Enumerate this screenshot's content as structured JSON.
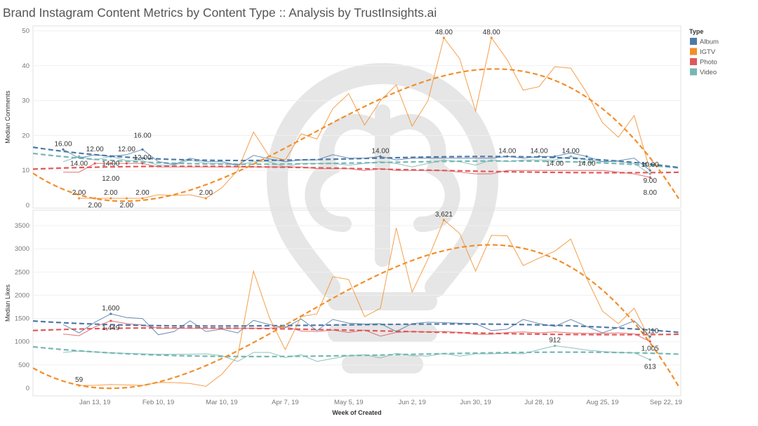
{
  "title": "Brand Instagram Content Metrics by Content Type :: Analysis by TrustInsights.ai",
  "legend": {
    "title": "Type",
    "items": [
      {
        "name": "Album",
        "color": "#4e79a7"
      },
      {
        "name": "IGTV",
        "color": "#f28e2b"
      },
      {
        "name": "Photo",
        "color": "#e15759"
      },
      {
        "name": "Video",
        "color": "#76b7b2"
      }
    ]
  },
  "watermark": "trustinsights-lightbulb-brain-logo",
  "chart_data": [
    {
      "type": "line",
      "ylabel": "Median Comments",
      "xlabel": "Week of Created",
      "ylim": [
        0,
        50
      ],
      "yticks": [
        "0",
        "10",
        "20",
        "30",
        "40",
        "50"
      ],
      "trendline": "polynomial",
      "label_decimals": 2,
      "x": [
        "2018-12-30",
        "2019-01-06",
        "2019-01-13",
        "2019-01-20",
        "2019-01-27",
        "2019-02-03",
        "2019-02-10",
        "2019-02-17",
        "2019-02-24",
        "2019-03-03",
        "2019-03-10",
        "2019-03-17",
        "2019-03-24",
        "2019-03-31",
        "2019-04-07",
        "2019-04-14",
        "2019-04-21",
        "2019-04-28",
        "2019-05-05",
        "2019-05-12",
        "2019-05-19",
        "2019-05-26",
        "2019-06-02",
        "2019-06-09",
        "2019-06-16",
        "2019-06-23",
        "2019-06-30",
        "2019-07-07",
        "2019-07-14",
        "2019-07-21",
        "2019-07-28",
        "2019-08-04",
        "2019-08-11",
        "2019-08-18",
        "2019-08-25",
        "2019-09-01",
        "2019-09-08",
        "2019-09-15",
        "2019-09-22"
      ],
      "series": [
        {
          "name": "Album",
          "values": [
            16,
            13.5,
            14.5,
            14,
            14.5,
            16,
            12.5,
            11.7,
            13.5,
            12.5,
            12.5,
            11.5,
            14.3,
            13.3,
            12.5,
            13,
            13,
            14.5,
            13.5,
            13.5,
            14,
            13,
            13.5,
            13.5,
            13.5,
            13.5,
            13.5,
            13.5,
            14,
            13.5,
            14,
            14,
            15,
            14,
            12.5,
            12.8,
            13.5,
            10,
            null
          ],
          "labeled": [
            0,
            3,
            5,
            20,
            28,
            30,
            31,
            33,
            37
          ]
        },
        {
          "name": "IGTV",
          "values": [
            null,
            2,
            2,
            2,
            2,
            2,
            3,
            2.8,
            3,
            2,
            5,
            10,
            21,
            14,
            13,
            20.5,
            19,
            27.7,
            32,
            23,
            30,
            34.5,
            22.7,
            30,
            48,
            42,
            27,
            48,
            41.7,
            33,
            34,
            39.7,
            39.3,
            32.3,
            23.7,
            19.5,
            25.7,
            10,
            null
          ],
          "labeled": [
            1,
            2,
            3,
            4,
            5,
            9,
            24,
            27
          ]
        },
        {
          "name": "Photo",
          "values": [
            9.5,
            9.5,
            12,
            12,
            12,
            12,
            11,
            11,
            11,
            11,
            11,
            11,
            11,
            11,
            11,
            11,
            10.5,
            10.5,
            10.5,
            10,
            10.5,
            10,
            10,
            10,
            10,
            9.5,
            9,
            9,
            10,
            10,
            10,
            10,
            10,
            10,
            10,
            9.5,
            9,
            8,
            null
          ],
          "labeled": [
            2,
            3,
            4,
            5,
            37
          ]
        },
        {
          "name": "Video",
          "values": [
            12.5,
            14,
            13,
            14,
            12.8,
            12.8,
            11.5,
            11.5,
            13,
            12,
            12,
            11.5,
            12.5,
            12.5,
            11,
            12,
            12,
            12,
            11.5,
            12,
            12.5,
            12,
            11,
            12,
            13,
            12.5,
            11.5,
            13,
            12.5,
            13,
            13,
            13,
            14,
            13,
            12.5,
            12.5,
            12,
            9,
            null
          ],
          "labeled": [
            1,
            32,
            37
          ]
        }
      ]
    },
    {
      "type": "line",
      "ylabel": "Median Likes",
      "xlabel": "Week of Created",
      "ylim": [
        0,
        3700
      ],
      "yticks": [
        "0",
        "500",
        "1000",
        "1500",
        "2000",
        "2500",
        "3000",
        "3500"
      ],
      "xticks": [
        "Jan 13, 19",
        "Feb 10, 19",
        "Mar 10, 19",
        "Apr 7, 19",
        "May 5, 19",
        "Jun 2, 19",
        "Jun 30, 19",
        "Jul 28, 19",
        "Aug 25, 19",
        "Sep 22, 19"
      ],
      "trendline": "polynomial",
      "label_decimals": 0,
      "series": [
        {
          "name": "Album",
          "values": [
            1370,
            1190,
            1420,
            1600,
            1520,
            1500,
            1150,
            1220,
            1450,
            1220,
            1270,
            1190,
            1460,
            1370,
            1300,
            1490,
            1240,
            1480,
            1400,
            1380,
            1390,
            1220,
            1390,
            1420,
            1410,
            1400,
            1390,
            1240,
            1270,
            1480,
            1390,
            1330,
            1480,
            1330,
            1190,
            1310,
            1450,
            1110,
            null
          ],
          "labeled": [
            3,
            37
          ]
        },
        {
          "name": "IGTV",
          "values": [
            null,
            59,
            60,
            80,
            70,
            60,
            120,
            120,
            100,
            40,
            300,
            690,
            2520,
            1520,
            830,
            1540,
            1600,
            2400,
            2340,
            1540,
            1720,
            3450,
            2070,
            2780,
            3621,
            3330,
            2520,
            3290,
            3280,
            2640,
            2800,
            2950,
            3210,
            2370,
            1660,
            1390,
            1720,
            1040,
            null
          ],
          "labeled": [
            1,
            24
          ]
        },
        {
          "name": "Photo",
          "values": [
            1165,
            1130,
            1320,
            1449,
            1390,
            1360,
            1290,
            1290,
            1290,
            1290,
            1280,
            1290,
            1290,
            1290,
            1330,
            1230,
            1220,
            1250,
            1200,
            1250,
            1120,
            1200,
            1220,
            1210,
            1220,
            1200,
            1160,
            1160,
            1200,
            1210,
            1190,
            1210,
            1190,
            1180,
            1180,
            1190,
            1170,
            1005,
            null
          ],
          "labeled": [
            3,
            37
          ]
        },
        {
          "name": "Video",
          "values": [
            770,
            800,
            780,
            760,
            750,
            740,
            730,
            730,
            730,
            740,
            700,
            575,
            770,
            770,
            660,
            720,
            575,
            640,
            700,
            720,
            650,
            750,
            700,
            690,
            750,
            690,
            740,
            740,
            750,
            740,
            830,
            912,
            870,
            820,
            790,
            770,
            760,
            613,
            null
          ],
          "labeled": [
            31,
            37
          ]
        }
      ]
    }
  ]
}
